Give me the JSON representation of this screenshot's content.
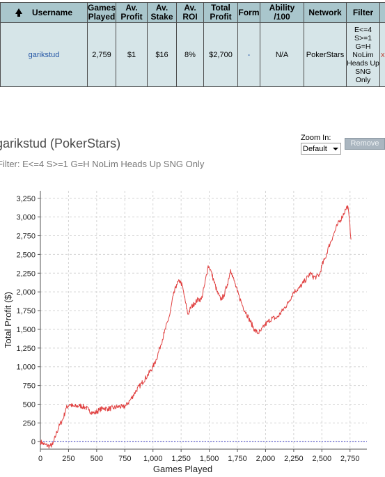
{
  "table": {
    "headers": {
      "username": "Username",
      "games_played": "Games Played",
      "av_profit": "Av. Profit",
      "av_stake": "Av. Stake",
      "av_roi": "Av. ROI",
      "total_profit": "Total Profit",
      "form": "Form",
      "ability": "Ability /100",
      "network": "Network",
      "filter": "Filter"
    },
    "row": {
      "username": "garikstud",
      "games_played": "2,759",
      "av_profit": "$1",
      "av_stake": "$16",
      "av_roi": "8%",
      "total_profit": "$2,700",
      "form": "-",
      "ability": "N/A",
      "network": "PokerStars",
      "filter": "E<=4 S>=1 G=H NoLim Heads Up SNG Only",
      "remove": "x"
    }
  },
  "chart_header": {
    "title": "garikstud (PokerStars)",
    "filter": "Filter: E<=4 S>=1 G=H NoLim Heads Up SNG Only",
    "zoom_label": "Zoom In:",
    "zoom_value": "Default",
    "remove_label": "Remove"
  },
  "chart_data": {
    "type": "line",
    "xlabel": "Games Played",
    "ylabel": "Total Profit ($)",
    "xlim": [
      0,
      2900
    ],
    "ylim": [
      -100,
      3350
    ],
    "xticks": [
      0,
      250,
      500,
      750,
      1000,
      1250,
      1500,
      1750,
      2000,
      2250,
      2500,
      2750
    ],
    "xtick_labels": [
      "0",
      "250",
      "500",
      "750",
      "1,000",
      "1,250",
      "1,500",
      "1,750",
      "2,000",
      "2,250",
      "2,500",
      "2,750"
    ],
    "yticks": [
      0,
      250,
      500,
      750,
      1000,
      1250,
      1500,
      1750,
      2000,
      2250,
      2500,
      2750,
      3000,
      3250
    ],
    "ytick_labels": [
      "0",
      "250",
      "500",
      "750",
      "1,000",
      "1,250",
      "1,500",
      "1,750",
      "2,000",
      "2,250",
      "2,500",
      "2,750",
      "3,000",
      "3,250"
    ],
    "grid": true,
    "zero_line": true,
    "line_color": "#e04040",
    "series": [
      {
        "x": [
          0,
          40,
          80,
          110,
          140,
          170,
          200,
          230,
          260,
          290,
          320,
          350,
          400,
          430,
          460,
          480,
          520,
          560,
          600,
          650,
          700,
          730,
          760,
          800,
          850,
          900,
          950,
          1000,
          1030,
          1060,
          1100,
          1150,
          1180,
          1210,
          1240,
          1260,
          1290,
          1310,
          1340,
          1370,
          1400,
          1430,
          1460,
          1490,
          1510,
          1540,
          1570,
          1600,
          1630,
          1660,
          1690,
          1700,
          1720,
          1750,
          1800,
          1850,
          1900,
          1930,
          1960,
          1990,
          2020,
          2060,
          2100,
          2150,
          2200,
          2250,
          2300,
          2350,
          2400,
          2420,
          2450,
          2480,
          2500,
          2530,
          2560,
          2600,
          2640,
          2680,
          2710,
          2730,
          2745,
          2759
        ],
        "y": [
          0,
          -40,
          -60,
          -40,
          100,
          220,
          300,
          450,
          500,
          470,
          470,
          480,
          460,
          420,
          390,
          380,
          420,
          450,
          440,
          450,
          470,
          460,
          480,
          560,
          680,
          780,
          880,
          1000,
          1100,
          1250,
          1450,
          1700,
          1950,
          2100,
          2150,
          2080,
          1850,
          1700,
          1800,
          1850,
          1900,
          1900,
          2100,
          2350,
          2300,
          2150,
          2000,
          1900,
          1950,
          2100,
          2300,
          2250,
          2150,
          2000,
          1800,
          1650,
          1500,
          1450,
          1480,
          1550,
          1600,
          1650,
          1650,
          1750,
          1850,
          2000,
          2050,
          2150,
          2250,
          2200,
          2200,
          2230,
          2350,
          2450,
          2600,
          2750,
          2900,
          3000,
          3100,
          3150,
          2950,
          2700
        ]
      }
    ]
  }
}
